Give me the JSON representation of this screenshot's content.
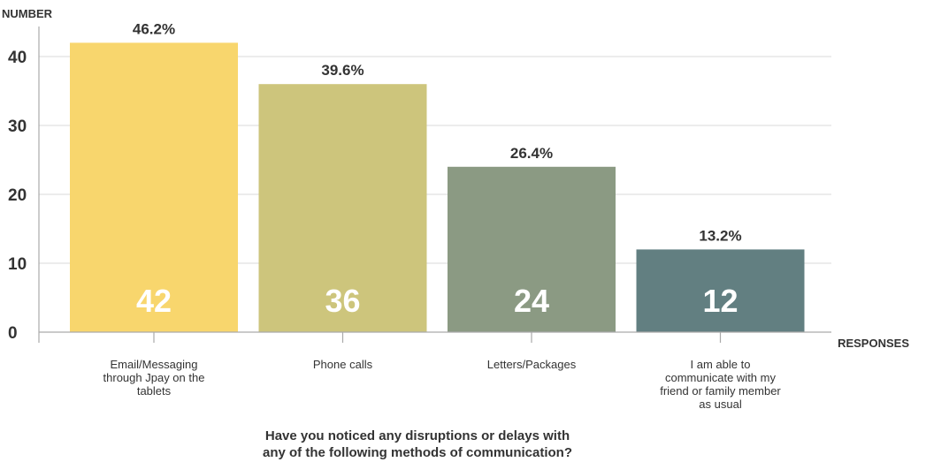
{
  "chart_data": {
    "type": "bar",
    "title_lines": [
      "Have you noticed any disruptions or delays with",
      "any of the following methods of communication?"
    ],
    "ylabel": "NUMBER",
    "xlabel": "RESPONSES",
    "ylim": [
      0,
      45
    ],
    "yticks": [
      0,
      10,
      20,
      30,
      40
    ],
    "grid": true,
    "categories": [
      [
        "Email/Messaging",
        "through Jpay on the",
        "tablets"
      ],
      [
        "Phone calls"
      ],
      [
        "Letters/Packages"
      ],
      [
        "I am able to",
        "communicate with my",
        "friend or family member",
        "as usual"
      ]
    ],
    "values": [
      42,
      36,
      24,
      12
    ],
    "percent_labels": [
      "46.2%",
      "39.6%",
      "26.4%",
      "13.2%"
    ],
    "colors": [
      "#f8d66d",
      "#cdc57c",
      "#8b9a83",
      "#627f81"
    ]
  }
}
